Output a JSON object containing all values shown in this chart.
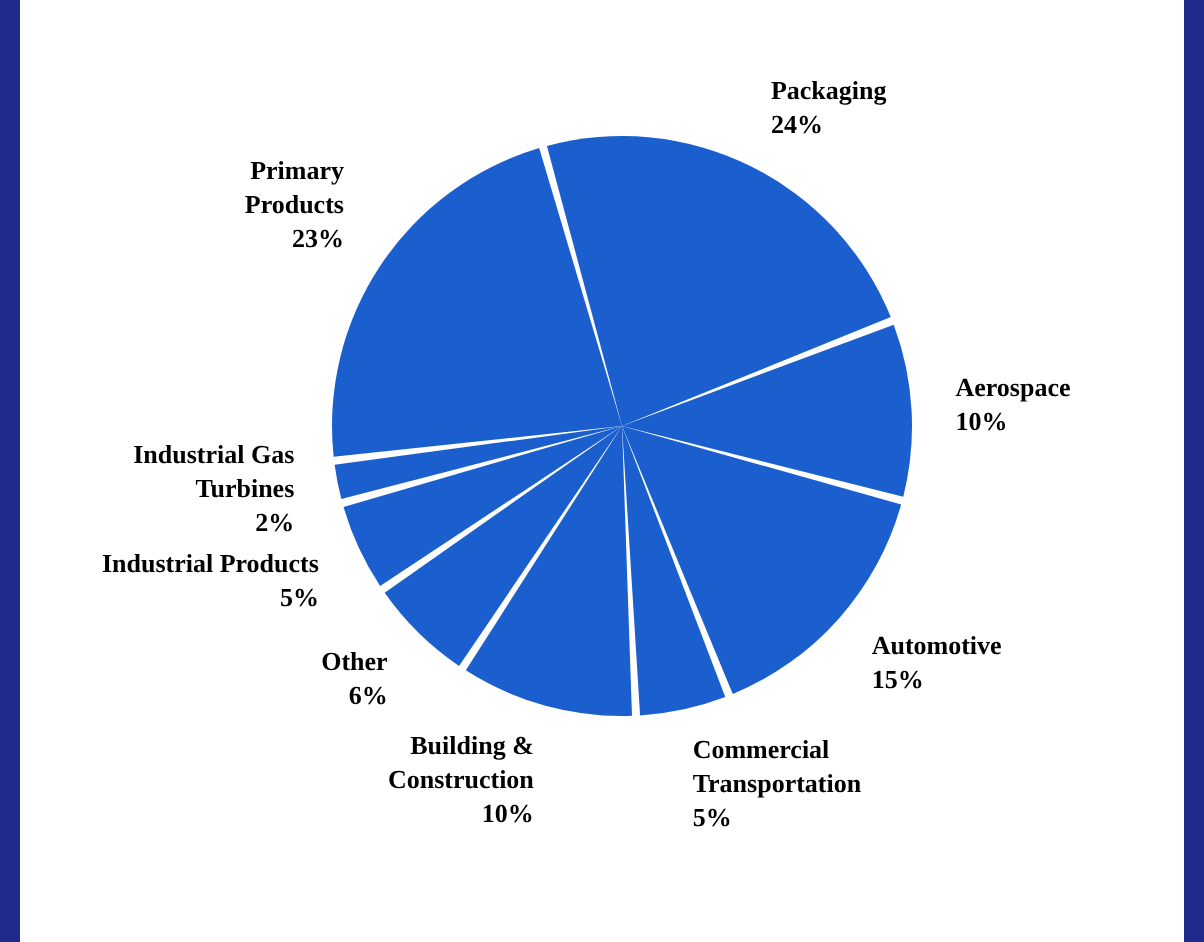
{
  "chart_data": {
    "type": "pie",
    "categories": [
      "Packaging",
      "Aerospace",
      "Automotive",
      "Commercial\nTransportation",
      "Building &\nConstruction",
      "Other",
      "Industrial Products",
      "Industrial Gas\nTurbines",
      "Primary\nProducts"
    ],
    "values": [
      24,
      10,
      15,
      5,
      10,
      6,
      5,
      2,
      23
    ],
    "value_labels": [
      "24%",
      "10%",
      "15%",
      "5%",
      "10%",
      "6%",
      "5%",
      "2%",
      "23%"
    ],
    "colors": [
      "#1b5fcf",
      "#1b5fcf",
      "#1b5fcf",
      "#1b5fcf",
      "#1b5fcf",
      "#1b5fcf",
      "#1b5fcf",
      "#1b5fcf",
      "#1b5fcf"
    ]
  }
}
